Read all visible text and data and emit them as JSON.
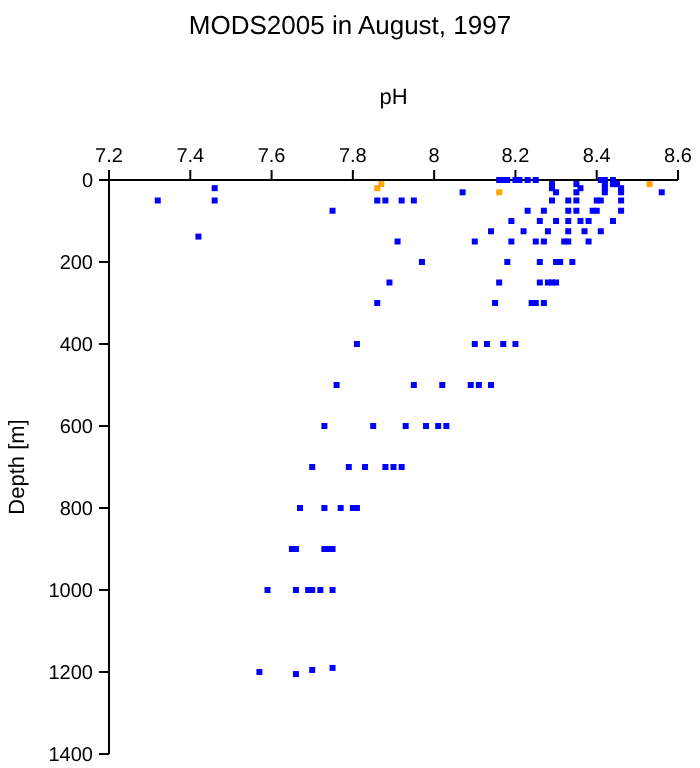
{
  "chart_data": {
    "type": "scatter",
    "title": "MODS2005 in August, 1997",
    "xlabel": "pH",
    "ylabel": "Depth [m]",
    "xlim": [
      7.2,
      8.6
    ],
    "xticks": [
      7.2,
      7.4,
      7.6,
      7.8,
      8,
      8.2,
      8.4,
      8.6
    ],
    "ylim": [
      1400,
      0
    ],
    "yticks": [
      0,
      200,
      400,
      600,
      800,
      1000,
      1200,
      1400
    ],
    "grid": false,
    "marker": "square",
    "series": [
      {
        "color": "#0000ff",
        "x": [
          8.16,
          8.17,
          8.18,
          8.2,
          8.21,
          8.23,
          8.25,
          8.41,
          8.42,
          8.44,
          8.29,
          8.35,
          8.42,
          8.44,
          8.45,
          7.46,
          8.29,
          8.36,
          8.42,
          8.46,
          8.07,
          8.3,
          8.35,
          8.42,
          8.46,
          8.56,
          7.32,
          7.46,
          7.86,
          7.88,
          7.92,
          7.95,
          8.29,
          8.33,
          8.35,
          8.4,
          8.41,
          8.46,
          7.75,
          8.23,
          8.27,
          8.33,
          8.35,
          8.39,
          8.4,
          8.46,
          8.19,
          8.26,
          8.3,
          8.33,
          8.36,
          8.38,
          8.44,
          8.14,
          8.22,
          8.28,
          8.33,
          8.37,
          8.41,
          7.42,
          7.91,
          8.1,
          8.19,
          8.25,
          8.27,
          8.32,
          8.33,
          8.38,
          7.97,
          8.18,
          8.26,
          8.3,
          8.31,
          8.34,
          7.89,
          8.16,
          8.26,
          8.28,
          8.29,
          8.3,
          7.86,
          8.15,
          8.24,
          8.25,
          8.27,
          7.81,
          8.1,
          8.13,
          8.17,
          8.2,
          7.76,
          7.95,
          8.02,
          8.09,
          8.11,
          8.14,
          7.73,
          7.85,
          7.93,
          7.98,
          8.01,
          8.03,
          7.7,
          7.79,
          7.83,
          7.88,
          7.9,
          7.92,
          7.67,
          7.73,
          7.77,
          7.8,
          7.81,
          7.65,
          7.66,
          7.73,
          7.74,
          7.75,
          7.59,
          7.66,
          7.69,
          7.7,
          7.72,
          7.75,
          7.57,
          7.66,
          7.7,
          7.75
        ],
        "values": [
          0,
          0,
          0,
          0,
          0,
          0,
          0,
          0,
          0,
          0,
          10,
          10,
          10,
          10,
          10,
          20,
          20,
          20,
          20,
          20,
          30,
          30,
          30,
          30,
          30,
          30,
          50,
          50,
          50,
          50,
          50,
          50,
          50,
          50,
          50,
          50,
          50,
          50,
          75,
          75,
          75,
          75,
          75,
          75,
          75,
          75,
          100,
          100,
          100,
          100,
          100,
          100,
          100,
          125,
          125,
          125,
          125,
          125,
          125,
          138,
          150,
          150,
          150,
          150,
          150,
          150,
          150,
          150,
          200,
          200,
          200,
          200,
          200,
          200,
          250,
          250,
          250,
          250,
          250,
          250,
          300,
          300,
          300,
          300,
          300,
          400,
          400,
          400,
          400,
          400,
          500,
          500,
          500,
          500,
          500,
          500,
          600,
          600,
          600,
          600,
          600,
          600,
          700,
          700,
          700,
          700,
          700,
          700,
          800,
          800,
          800,
          800,
          800,
          900,
          900,
          900,
          900,
          900,
          1000,
          1000,
          1000,
          1000,
          1000,
          1000,
          1200,
          1205,
          1195,
          1190
        ]
      },
      {
        "color": "#ffa500",
        "x": [
          7.87,
          7.86,
          8.16,
          8.53
        ],
        "values": [
          10,
          20,
          30,
          10
        ]
      }
    ]
  }
}
